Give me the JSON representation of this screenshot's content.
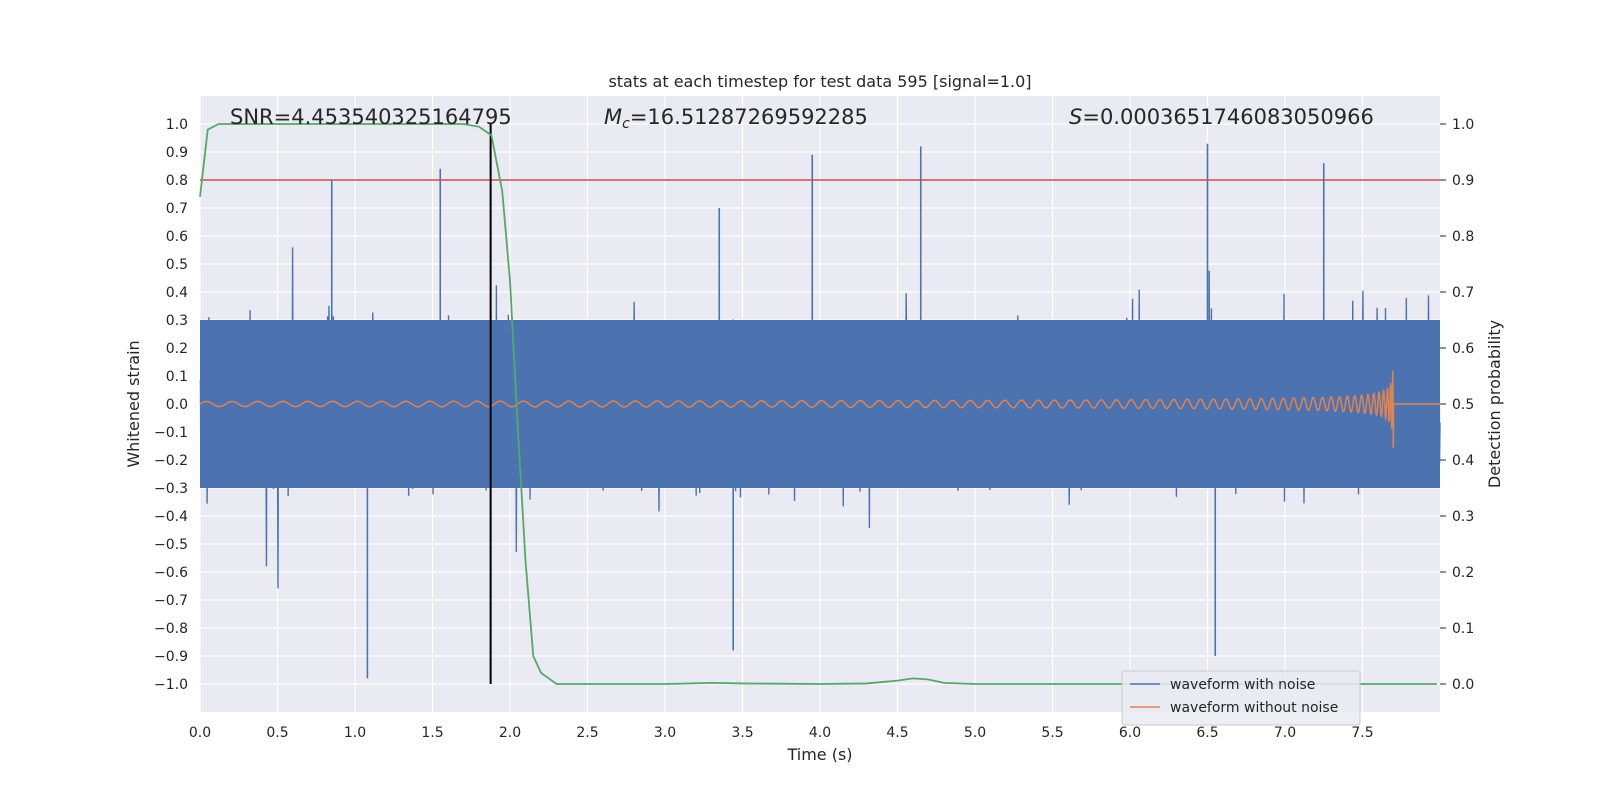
{
  "chart_data": {
    "type": "line",
    "title": "stats at each timestep for test data 595 [signal=1.0]",
    "xlabel": "Time (s)",
    "ylabel": "Whitened strain",
    "y2label": "Detection probability",
    "xlim": [
      0,
      8
    ],
    "ylim": [
      -1.1,
      1.1
    ],
    "y2lim": [
      -0.05,
      1.05
    ],
    "xticks": [
      0.0,
      0.5,
      1.0,
      1.5,
      2.0,
      2.5,
      3.0,
      3.5,
      4.0,
      4.5,
      5.0,
      5.5,
      6.0,
      6.5,
      7.0,
      7.5
    ],
    "xtick_labels": [
      "0.0",
      "0.5",
      "1.0",
      "1.5",
      "2.0",
      "2.5",
      "3.0",
      "3.5",
      "4.0",
      "4.5",
      "5.0",
      "5.5",
      "6.0",
      "6.5",
      "7.0",
      "7.5"
    ],
    "yticks": [
      1.0,
      0.9,
      0.8,
      0.7,
      0.6,
      0.5,
      0.4,
      0.3,
      0.2,
      0.1,
      0.0,
      -0.1,
      -0.2,
      -0.3,
      -0.4,
      -0.5,
      -0.6,
      -0.7,
      -0.8,
      -0.9,
      -1.0
    ],
    "ytick_labels": [
      "1.0",
      "0.9",
      "0.8",
      "0.7",
      "0.6",
      "0.5",
      "0.4",
      "0.3",
      "0.2",
      "0.1",
      "0.0",
      "−0.1",
      "−0.2",
      "−0.3",
      "−0.4",
      "−0.5",
      "−0.6",
      "−0.7",
      "−0.8",
      "−0.9",
      "−1.0"
    ],
    "y2ticks": [
      1.0,
      0.9,
      0.8,
      0.7,
      0.6,
      0.5,
      0.4,
      0.3,
      0.2,
      0.1,
      0.0
    ],
    "y2tick_labels": [
      "1.0",
      "0.9",
      "0.8",
      "0.7",
      "0.6",
      "0.5",
      "0.4",
      "0.3",
      "0.2",
      "0.1",
      "0.0"
    ],
    "annotations": {
      "snr": "SNR=4.453540325164795",
      "mc_symbol": "M",
      "mc_sub": "c",
      "mc_value": "=16.51287269592285",
      "s_symbol": "S",
      "s_value": "=0.0003651746083050966"
    },
    "threshold": {
      "value": 0.9,
      "axis": "y2",
      "color": "#c44e52"
    },
    "vertical_line": {
      "x": 1.875,
      "y_from": -1.0,
      "y_to": 1.0,
      "color": "#000000"
    },
    "legend": {
      "position": "lower-right",
      "entries": [
        {
          "label": "waveform with noise",
          "color": "#4c72b0"
        },
        {
          "label": "waveform without noise",
          "color": "#dd8452"
        }
      ]
    },
    "series": [
      {
        "name": "waveform with noise",
        "color": "#4c72b0",
        "description": "whitened noisy strain, approx. uniform noise with peaks up to about 0.95 and troughs to about -1.0",
        "peaks": [
          {
            "x": 0.85,
            "y": 0.8
          },
          {
            "x": 1.08,
            "y": -0.98
          },
          {
            "x": 1.55,
            "y": 0.84
          },
          {
            "x": 3.35,
            "y": 0.7
          },
          {
            "x": 3.44,
            "y": -0.88
          },
          {
            "x": 3.95,
            "y": 0.89
          },
          {
            "x": 4.65,
            "y": 0.92
          },
          {
            "x": 6.5,
            "y": 0.93
          },
          {
            "x": 6.55,
            "y": -0.9
          },
          {
            "x": 7.25,
            "y": 0.86
          }
        ]
      },
      {
        "name": "waveform without noise",
        "color": "#dd8452",
        "description": "chirp signal increasing in amplitude and frequency, merging near t=7.7 s",
        "merger_time": 7.7,
        "max_amplitude": 0.19
      },
      {
        "name": "detection probability",
        "axis": "y2",
        "color": "#55a868",
        "x": [
          0.0,
          0.05,
          0.12,
          0.2,
          0.5,
          1.0,
          1.5,
          1.7,
          1.8,
          1.88,
          1.95,
          2.0,
          2.05,
          2.1,
          2.15,
          2.2,
          2.3,
          2.5,
          3.0,
          3.3,
          3.5,
          4.0,
          4.3,
          4.5,
          4.6,
          4.7,
          4.8,
          5.0,
          5.5,
          6.0,
          6.5,
          7.0,
          7.5,
          7.98
        ],
        "y": [
          0.87,
          0.99,
          1.0,
          1.0,
          1.0,
          1.0,
          1.0,
          1.0,
          0.995,
          0.98,
          0.88,
          0.72,
          0.46,
          0.22,
          0.05,
          0.02,
          0.0,
          0.0,
          0.0,
          0.002,
          0.001,
          0.0,
          0.001,
          0.006,
          0.01,
          0.008,
          0.002,
          0.0,
          0.0,
          0.0,
          0.0,
          0.0,
          0.0,
          0.0
        ]
      }
    ]
  }
}
